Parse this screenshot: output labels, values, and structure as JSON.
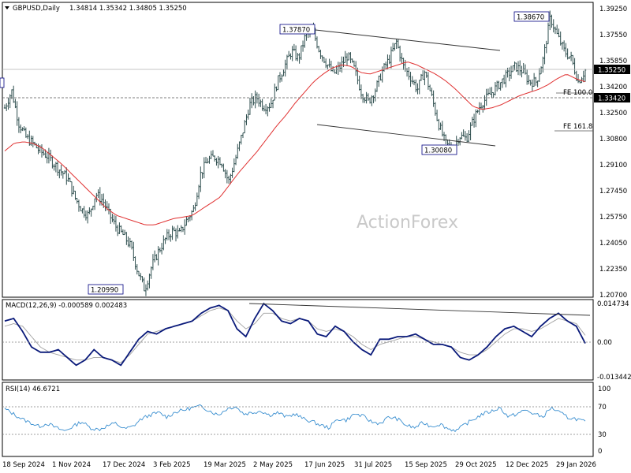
{
  "panels": {
    "price": {
      "header_symbol": "GBPUSD,Daily",
      "header_ohlc": "1.34814 1.35342 1.34805 1.35250",
      "watermark": "ActionForex",
      "price_ticks": [
        "1.39250",
        "1.37550",
        "1.35850",
        "1.34200",
        "1.32500",
        "1.30800",
        "1.29100",
        "1.27450",
        "1.25750",
        "1.24050",
        "1.22350",
        "1.20700"
      ],
      "current_price_label": "1.35250",
      "level_label": "1.33420",
      "fe_labels": {
        "fe100": "FE 100.0",
        "fe161": "FE 161.8"
      },
      "annotations": [
        "1.37870",
        "1.38670",
        "1.30080",
        "1.20990"
      ]
    },
    "macd": {
      "header": "MACD(12,26,9) -0.000589 0.002483",
      "ticks": [
        "0.014734",
        "0.00",
        "-0.013442"
      ]
    },
    "rsi": {
      "header": "RSI(14) 46.6721",
      "ticks": [
        "100",
        "70",
        "30",
        "0"
      ]
    }
  },
  "x_axis_labels": [
    "18 Sep 2024",
    "1 Nov 2024",
    "17 Dec 2024",
    "3 Feb 2025",
    "19 Mar 2025",
    "2 May 2025",
    "17 Jun 2025",
    "31 Jul 2025",
    "15 Sep 2025",
    "29 Oct 2025",
    "12 Dec 2025",
    "29 Jan 2026"
  ],
  "colors": {
    "candles": "#2f4f4f",
    "ma": "#e03030",
    "macd_line": "#0a1a7a",
    "signal_line": "#a0a0a0",
    "rsi_line": "#3a8fd0",
    "label_box_border": "#000080",
    "grid_dash": "#808080"
  },
  "chart_data": [
    {
      "type": "line",
      "title": "GBPUSD,Daily",
      "x_range": [
        "18 Sep 2024",
        "29 Jan 2026"
      ],
      "ylim": [
        1.207,
        1.3925
      ],
      "series": [
        {
          "name": "",
          "values": [
            1.328,
            1.339,
            1.318,
            1.309,
            1.305,
            1.3,
            1.297,
            1.292,
            1.287,
            1.282,
            1.27,
            1.262,
            1.258,
            1.272,
            1.268,
            1.258,
            1.25,
            1.245,
            1.238,
            1.222,
            1.2099,
            1.225,
            1.235,
            1.243,
            1.248,
            1.246,
            1.255,
            1.262,
            1.285,
            1.294,
            1.296,
            1.293,
            1.28,
            1.295,
            1.312,
            1.33,
            1.335,
            1.329,
            1.33,
            1.345,
            1.355,
            1.365,
            1.36,
            1.375,
            1.3787,
            1.365,
            1.357,
            1.35,
            1.355,
            1.362,
            1.353,
            1.338,
            1.332,
            1.34,
            1.352,
            1.36,
            1.371,
            1.355,
            1.348,
            1.34,
            1.352,
            1.336,
            1.318,
            1.305,
            1.3008,
            1.31,
            1.308,
            1.32,
            1.33,
            1.335,
            1.34,
            1.345,
            1.35,
            1.355,
            1.352,
            1.345,
            1.345,
            1.36,
            1.3867,
            1.375,
            1.365,
            1.36,
            1.345,
            1.3525
          ]
        },
        {
          "name": "",
          "values": [
            1.3,
            1.305,
            1.306,
            1.305,
            1.302,
            1.297,
            1.292,
            1.286,
            1.28,
            1.274,
            1.268,
            1.262,
            1.258,
            1.256,
            1.254,
            1.252,
            1.252,
            1.254,
            1.256,
            1.257,
            1.258,
            1.262,
            1.266,
            1.27,
            1.278,
            1.286,
            1.293,
            1.3,
            1.308,
            1.316,
            1.323,
            1.331,
            1.338,
            1.345,
            1.35,
            1.354,
            1.356,
            1.355,
            1.351,
            1.35,
            1.352,
            1.354,
            1.356,
            1.358,
            1.356,
            1.353,
            1.35,
            1.346,
            1.341,
            1.335,
            1.329,
            1.327,
            1.328,
            1.33,
            1.333,
            1.336,
            1.338,
            1.34,
            1.343,
            1.347,
            1.35,
            1.347,
            1.345
          ]
        }
      ]
    },
    {
      "type": "line",
      "title": "MACD(12,26,9) -0.000589 0.002483",
      "x_range": [
        "18 Sep 2024",
        "29 Jan 2026"
      ],
      "ylim": [
        -0.013442,
        0.014734
      ],
      "series": [
        {
          "name": "",
          "values": [
            0.008,
            0.009,
            0.004,
            -0.002,
            -0.004,
            -0.004,
            -0.003,
            -0.006,
            -0.009,
            -0.007,
            -0.003,
            -0.006,
            -0.007,
            -0.009,
            -0.004,
            0.001,
            0.004,
            0.003,
            0.005,
            0.006,
            0.007,
            0.008,
            0.011,
            0.013,
            0.014,
            0.012,
            0.005,
            0.002,
            0.009,
            0.0147,
            0.012,
            0.008,
            0.007,
            0.009,
            0.008,
            0.003,
            0.002,
            0.006,
            0.004,
            0.0,
            -0.003,
            -0.005,
            0.001,
            0.001,
            0.002,
            0.002,
            0.003,
            0.001,
            -0.001,
            -0.001,
            -0.002,
            -0.006,
            -0.007,
            -0.005,
            -0.002,
            0.002,
            0.005,
            0.006,
            0.004,
            0.002,
            0.006,
            0.009,
            0.011,
            0.008,
            0.006,
            -0.0006
          ]
        },
        {
          "name": "",
          "values": [
            0.006,
            0.007,
            0.006,
            0.002,
            -0.002,
            -0.004,
            -0.005,
            -0.006,
            -0.007,
            -0.007,
            -0.006,
            -0.006,
            -0.007,
            -0.008,
            -0.005,
            -0.001,
            0.003,
            0.004,
            0.005,
            0.006,
            0.007,
            0.008,
            0.01,
            0.012,
            0.013,
            0.012,
            0.008,
            0.005,
            0.007,
            0.011,
            0.011,
            0.009,
            0.008,
            0.009,
            0.008,
            0.005,
            0.004,
            0.005,
            0.004,
            0.002,
            -0.001,
            -0.003,
            -0.001,
            0.0,
            0.001,
            0.002,
            0.002,
            0.001,
            0.0,
            -0.001,
            -0.002,
            -0.004,
            -0.005,
            -0.005,
            -0.003,
            0.0,
            0.003,
            0.005,
            0.005,
            0.004,
            0.005,
            0.007,
            0.009,
            0.008,
            0.007,
            0.0025
          ]
        }
      ]
    },
    {
      "type": "line",
      "title": "RSI(14) 46.6721",
      "x_range": [
        "18 Sep 2024",
        "29 Jan 2026"
      ],
      "ylim": [
        0,
        100
      ],
      "series": [
        {
          "name": "",
          "values": [
            68,
            60,
            52,
            46,
            40,
            45,
            38,
            33,
            40,
            48,
            38,
            35,
            41,
            45,
            36,
            40,
            52,
            58,
            62,
            55,
            63,
            66,
            70,
            72,
            65,
            58,
            68,
            72,
            60,
            62,
            65,
            58,
            62,
            55,
            60,
            52,
            48,
            42,
            38,
            52,
            50,
            60,
            56,
            47,
            45,
            55,
            52,
            42,
            38,
            46,
            40,
            44,
            36,
            34,
            44,
            52,
            60,
            64,
            70,
            55,
            60,
            66,
            60,
            55,
            70,
            62,
            54,
            52,
            47
          ]
        }
      ]
    }
  ]
}
